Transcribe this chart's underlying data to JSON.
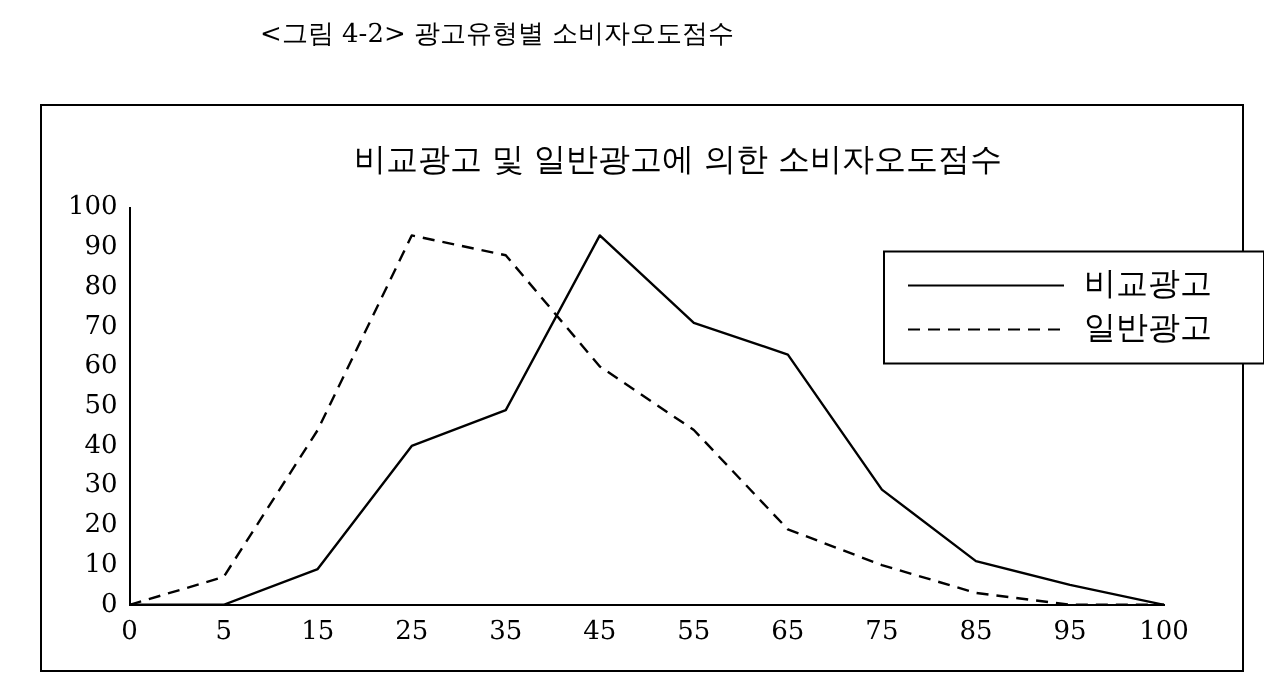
{
  "chart_data": {
    "type": "line",
    "title": "비교광고 및 일반광고에 의한 소비자오도점수",
    "annotations": [
      "<그림 4-2> 광고유형별 소비자오도점수"
    ],
    "categories": [
      "0",
      "5",
      "15",
      "25",
      "35",
      "45",
      "55",
      "65",
      "75",
      "85",
      "95",
      "100"
    ],
    "series": [
      {
        "name": "비교광고",
        "color": "#000000",
        "line_style": "solid",
        "values": [
          0,
          0,
          9,
          40,
          49,
          93,
          71,
          63,
          29,
          11,
          5,
          0
        ]
      },
      {
        "name": "일반광고",
        "color": "#000000",
        "line_style": "dashed",
        "values": [
          0,
          7,
          44,
          93,
          88,
          60,
          44,
          19,
          10,
          3,
          0,
          0
        ]
      }
    ],
    "ylim": [
      0,
      100
    ],
    "yticks": [
      0,
      10,
      20,
      30,
      40,
      50,
      60,
      70,
      80,
      90,
      100
    ],
    "grid": false,
    "legend": "top right",
    "marker": "none"
  }
}
